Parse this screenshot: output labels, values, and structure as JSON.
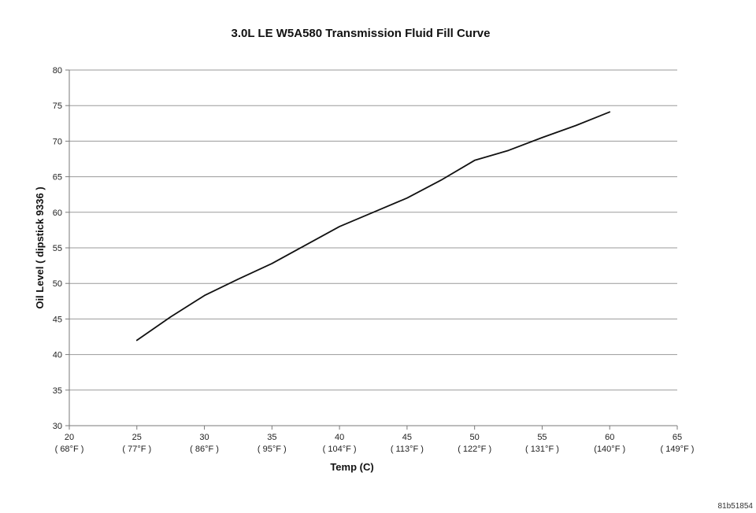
{
  "figure_id": "81b51854",
  "colors": {
    "line": "#111111",
    "grid": "#9a9a9a",
    "axis": "#7a7a7a",
    "background": "#ffffff"
  },
  "chart_data": {
    "type": "line",
    "title": "3.0L LE W5A580 Transmission Fluid Fill Curve",
    "xlabel": "Temp (C)",
    "ylabel": "Oil Level ( dipstick 9336 )",
    "xlim": [
      20,
      65
    ],
    "ylim": [
      30,
      80
    ],
    "grid": "horizontal",
    "legend": "none",
    "x_ticks": [
      {
        "value": 20,
        "label": "20",
        "sublabel": "( 68°F )"
      },
      {
        "value": 25,
        "label": "25",
        "sublabel": "( 77°F )"
      },
      {
        "value": 30,
        "label": "30",
        "sublabel": "( 86°F )"
      },
      {
        "value": 35,
        "label": "35",
        "sublabel": "( 95°F )"
      },
      {
        "value": 40,
        "label": "40",
        "sublabel": "( 104°F )"
      },
      {
        "value": 45,
        "label": "45",
        "sublabel": "( 113°F )"
      },
      {
        "value": 50,
        "label": "50",
        "sublabel": "( 122°F )"
      },
      {
        "value": 55,
        "label": "55",
        "sublabel": "( 131°F )"
      },
      {
        "value": 60,
        "label": "60",
        "sublabel": "(140°F )"
      },
      {
        "value": 65,
        "label": "65",
        "sublabel": "( 149°F )"
      }
    ],
    "y_ticks": [
      30,
      35,
      40,
      45,
      50,
      55,
      60,
      65,
      70,
      75,
      80
    ],
    "series": [
      {
        "x": [
          25,
          27.5,
          30,
          32.5,
          35,
          37.5,
          40,
          42.5,
          45,
          47.5,
          50,
          52.5,
          55,
          57.5,
          60
        ],
        "y": [
          42,
          45.3,
          48.3,
          50.6,
          52.8,
          55.4,
          58,
          60,
          62,
          64.5,
          67.3,
          68.7,
          70.5,
          72.2,
          74.1
        ]
      }
    ]
  }
}
